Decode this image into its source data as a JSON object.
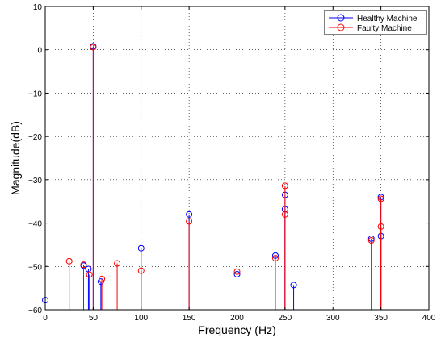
{
  "chart_data": {
    "type": "scatter",
    "style": "stem",
    "xlabel": "Frequency (Hz)",
    "ylabel": "Magnitude(dB)",
    "xlim": [
      0,
      400
    ],
    "ylim": [
      -60,
      10
    ],
    "xticks": [
      0,
      50,
      100,
      150,
      200,
      250,
      300,
      350,
      400
    ],
    "yticks": [
      10,
      0,
      -10,
      -20,
      -30,
      -40,
      -50,
      -60
    ],
    "grid": true,
    "legend_position": "top-right",
    "series": [
      {
        "name": "Healthy Machine",
        "color": "#0000ff",
        "marker": "circle",
        "x": [
          0,
          40,
          45,
          50,
          58,
          100,
          150,
          200,
          240,
          250,
          250,
          259,
          340,
          350,
          350
        ],
        "y": [
          -57.8,
          -49.8,
          -50.6,
          0.8,
          -53.5,
          -45.8,
          -38.0,
          -51.8,
          -47.5,
          -36.8,
          -33.5,
          -54.3,
          -43.6,
          -43.0,
          -34.0
        ]
      },
      {
        "name": "Faulty Machine",
        "color": "#ff0000",
        "marker": "circle",
        "x": [
          25,
          40,
          46,
          50,
          59,
          75,
          100,
          150,
          200,
          240,
          250,
          250,
          340,
          350,
          350
        ],
        "y": [
          -48.8,
          -49.6,
          -51.9,
          0.6,
          -52.9,
          -49.3,
          -51.0,
          -39.6,
          -51.2,
          -48.1,
          -38.0,
          -31.4,
          -44.0,
          -40.8,
          -34.4
        ]
      }
    ]
  }
}
